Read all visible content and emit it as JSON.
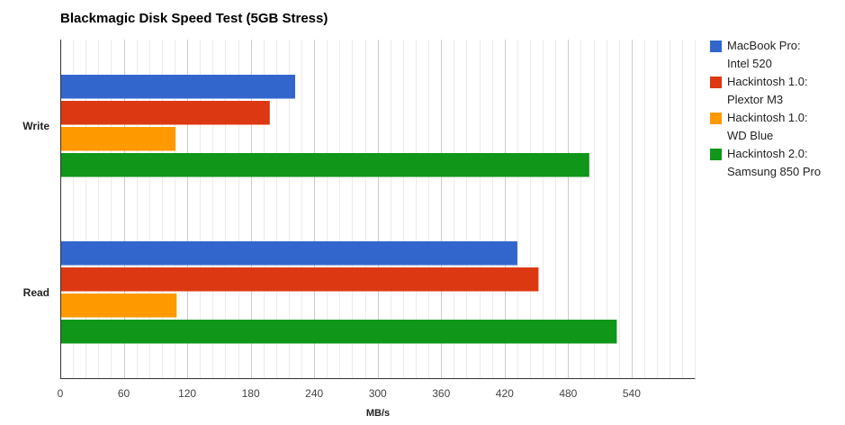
{
  "chart_data": {
    "type": "bar",
    "orientation": "horizontal",
    "title": "Blackmagic Disk Speed Test (5GB Stress)",
    "xlabel": "MB/s",
    "ylabel": "",
    "xlim": [
      0,
      600
    ],
    "x_ticks": [
      0,
      60,
      120,
      180,
      240,
      300,
      360,
      420,
      480,
      540
    ],
    "minor_grid_step": 12,
    "grid": true,
    "legend_position": "right",
    "categories": [
      "Write",
      "Read"
    ],
    "series": [
      {
        "name": "MacBook Pro: Intel 520",
        "name_lines": [
          "MacBook Pro:",
          "Intel 520"
        ],
        "color": "#3366cc",
        "values": [
          222,
          432
        ]
      },
      {
        "name": "Hackintosh 1.0: Plextor M3",
        "name_lines": [
          "Hackintosh 1.0:",
          "Plextor M3"
        ],
        "color": "#dc3912",
        "values": [
          198,
          452
        ]
      },
      {
        "name": "Hackintosh 1.0: WD Blue",
        "name_lines": [
          "Hackintosh 1.0:",
          "WD Blue"
        ],
        "color": "#ff9900",
        "values": [
          109,
          110
        ]
      },
      {
        "name": "Hackintosh 2.0: Samsung 850 Pro",
        "name_lines": [
          "Hackintosh 2.0:",
          "Samsung 850 Pro"
        ],
        "color": "#109618",
        "values": [
          500,
          526
        ]
      }
    ]
  }
}
